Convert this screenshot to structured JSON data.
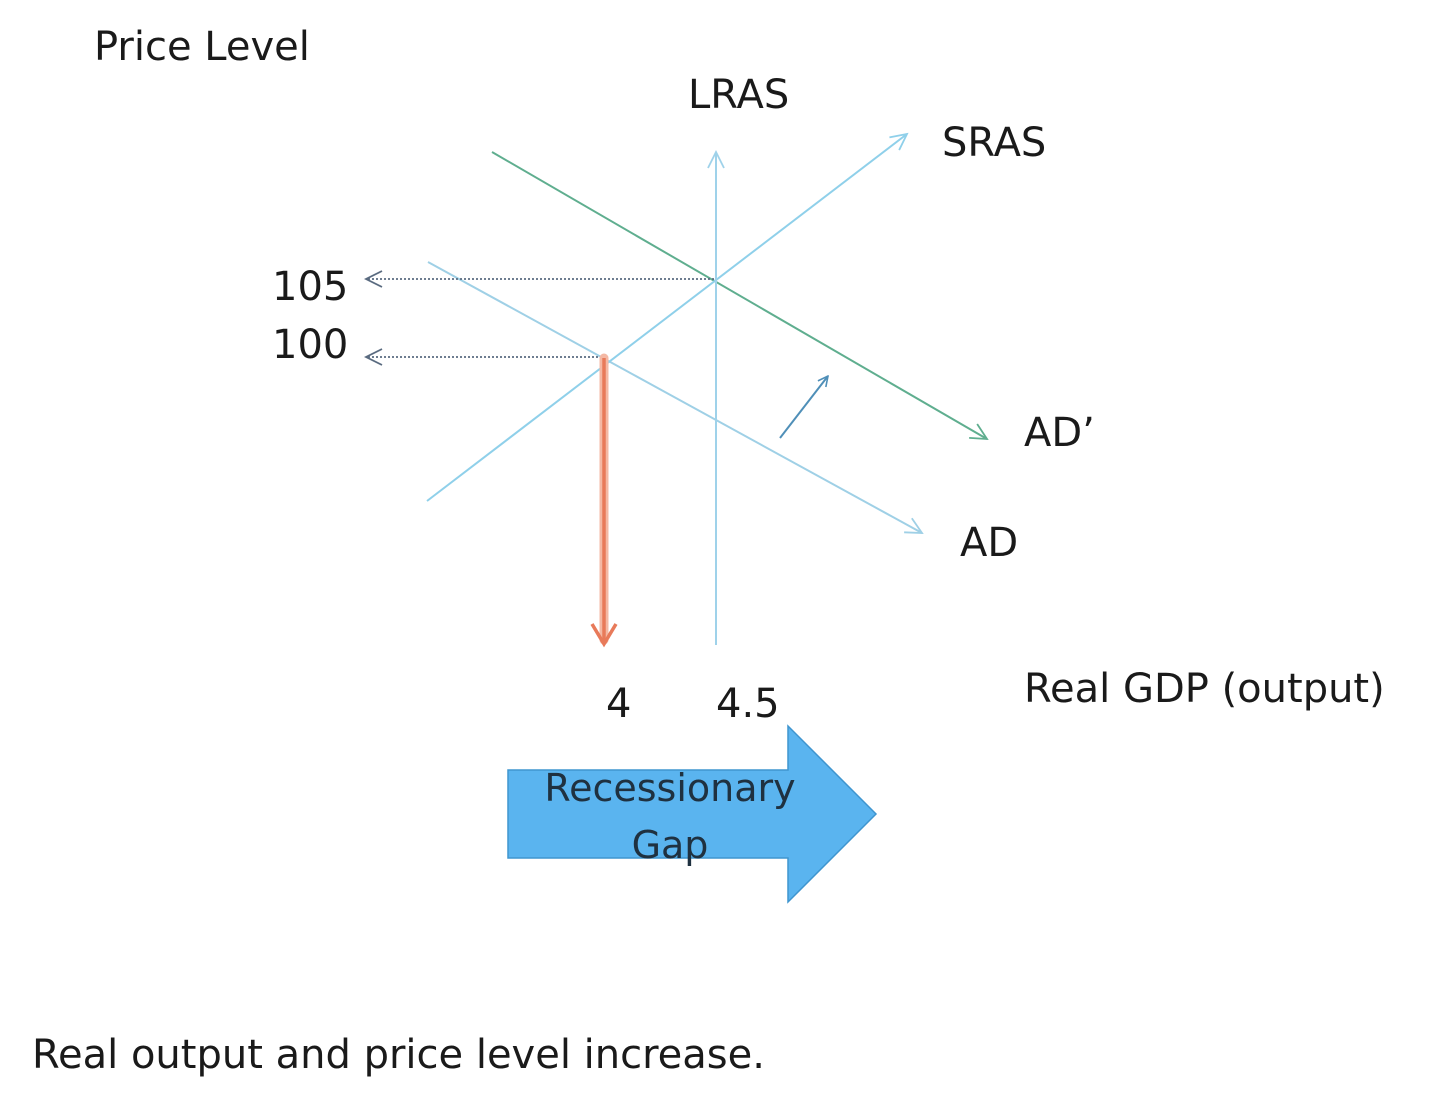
{
  "axes": {
    "y_label": "Price Level",
    "x_label": "Real GDP (output)"
  },
  "curves": {
    "lras": "LRAS",
    "sras": "SRAS",
    "ad": "AD",
    "ad_shifted": "AD’"
  },
  "price_ticks": [
    "105",
    "100"
  ],
  "output_ticks": [
    "4",
    "4.5"
  ],
  "gap_arrow": {
    "line1": "Recessionary",
    "line2": "Gap",
    "color": "#5ab4ef"
  },
  "caption": "Real output and price level increase.",
  "colors": {
    "sras": "#8fd0ea",
    "lras": "#9fd2ea",
    "ad": "#9fd0e6",
    "ad_shifted": "#5fae8f",
    "guides": "#5a6b80",
    "drop_arrow": "#e87a5a"
  }
}
